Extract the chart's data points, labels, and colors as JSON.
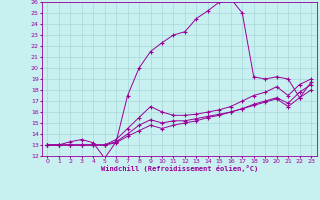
{
  "xlabel": "Windchill (Refroidissement éolien,°C)",
  "xlim": [
    0,
    23
  ],
  "ylim": [
    12,
    26
  ],
  "xticks": [
    0,
    1,
    2,
    3,
    4,
    5,
    6,
    7,
    8,
    9,
    10,
    11,
    12,
    13,
    14,
    15,
    16,
    17,
    18,
    19,
    20,
    21,
    22,
    23
  ],
  "yticks": [
    12,
    13,
    14,
    15,
    16,
    17,
    18,
    19,
    20,
    21,
    22,
    23,
    24,
    25,
    26
  ],
  "background_color": "#c8f0f0",
  "line_color": "#990099",
  "grid_color": "#a8d8d8",
  "line1_y": [
    13.0,
    13.0,
    13.3,
    13.5,
    13.2,
    11.8,
    13.3,
    17.5,
    20.0,
    21.5,
    22.3,
    23.0,
    23.3,
    24.5,
    25.2,
    26.0,
    26.3,
    25.0,
    19.2,
    19.0,
    19.2,
    19.0,
    17.3,
    18.7
  ],
  "line2_y": [
    13.0,
    13.0,
    13.0,
    13.0,
    13.0,
    13.0,
    13.5,
    14.5,
    15.5,
    16.5,
    16.0,
    15.7,
    15.7,
    15.8,
    16.0,
    16.2,
    16.5,
    17.0,
    17.5,
    17.8,
    18.3,
    17.5,
    18.5,
    19.0
  ],
  "line3_y": [
    13.0,
    13.0,
    13.0,
    13.0,
    13.0,
    13.0,
    13.3,
    14.0,
    14.8,
    15.3,
    15.0,
    15.2,
    15.2,
    15.4,
    15.6,
    15.8,
    16.0,
    16.3,
    16.7,
    17.0,
    17.3,
    16.8,
    17.8,
    18.5
  ],
  "line4_y": [
    13.0,
    13.0,
    13.0,
    13.0,
    13.0,
    13.0,
    13.2,
    13.8,
    14.3,
    14.8,
    14.5,
    14.8,
    15.0,
    15.2,
    15.5,
    15.7,
    16.0,
    16.3,
    16.6,
    16.9,
    17.2,
    16.5,
    17.3,
    18.0
  ]
}
